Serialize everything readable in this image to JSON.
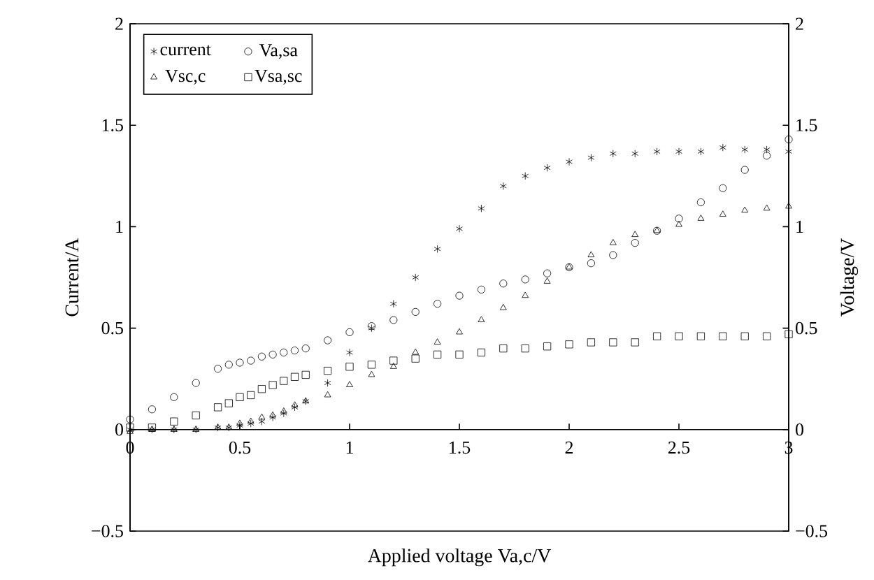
{
  "chart_data": {
    "type": "scatter",
    "xlabel": "Applied voltage Va,c/V",
    "ylabel": "Current/A",
    "y2label": "Voltage/V",
    "x": [
      0,
      0.1,
      0.2,
      0.3,
      0.4,
      0.45,
      0.5,
      0.55,
      0.6,
      0.65,
      0.7,
      0.75,
      0.8,
      0.9,
      1.0,
      1.1,
      1.2,
      1.3,
      1.4,
      1.5,
      1.6,
      1.7,
      1.8,
      1.9,
      2.0,
      2.1,
      2.2,
      2.3,
      2.4,
      2.5,
      2.6,
      2.7,
      2.8,
      2.9,
      3.0
    ],
    "series": [
      {
        "name": "current",
        "color": "#000000",
        "marker": "cross",
        "values": [
          0,
          0,
          0,
          0,
          0.01,
          0.01,
          0.02,
          0.03,
          0.04,
          0.06,
          0.08,
          0.11,
          0.14,
          0.23,
          0.38,
          0.5,
          0.62,
          0.75,
          0.89,
          0.99,
          1.09,
          1.2,
          1.25,
          1.29,
          1.32,
          1.34,
          1.36,
          1.36,
          1.37,
          1.37,
          1.37,
          1.39,
          1.38,
          1.38,
          1.37
        ]
      },
      {
        "name": "Va,sa",
        "color": "#000000",
        "marker": "circle",
        "values": [
          0.05,
          0.1,
          0.16,
          0.23,
          0.3,
          0.32,
          0.33,
          0.34,
          0.36,
          0.37,
          0.38,
          0.39,
          0.4,
          0.44,
          0.48,
          0.51,
          0.54,
          0.58,
          0.62,
          0.66,
          0.69,
          0.72,
          0.74,
          0.77,
          0.8,
          0.82,
          0.86,
          0.92,
          0.98,
          1.04,
          1.12,
          1.19,
          1.28,
          1.35,
          1.43
        ]
      },
      {
        "name": "Vsc,c",
        "color": "#000000",
        "marker": "triangle",
        "values": [
          -0.01,
          0,
          0,
          0,
          0.01,
          0.01,
          0.03,
          0.04,
          0.06,
          0.07,
          0.09,
          0.12,
          0.14,
          0.17,
          0.22,
          0.27,
          0.31,
          0.38,
          0.43,
          0.48,
          0.54,
          0.6,
          0.66,
          0.73,
          0.8,
          0.86,
          0.92,
          0.96,
          0.98,
          1.01,
          1.04,
          1.06,
          1.08,
          1.09,
          1.1
        ]
      },
      {
        "name": "Vsa,sc",
        "color": "#000000",
        "marker": "square",
        "values": [
          0.01,
          0.01,
          0.04,
          0.07,
          0.11,
          0.13,
          0.16,
          0.17,
          0.2,
          0.22,
          0.24,
          0.26,
          0.27,
          0.29,
          0.31,
          0.32,
          0.34,
          0.35,
          0.37,
          0.37,
          0.38,
          0.4,
          0.4,
          0.41,
          0.42,
          0.43,
          0.43,
          0.43,
          0.46,
          0.46,
          0.46,
          0.46,
          0.46,
          0.46,
          0.47
        ]
      }
    ],
    "xlim": [
      0,
      3
    ],
    "xticks": [
      0,
      0.5,
      1,
      1.5,
      2,
      2.5,
      3
    ],
    "ylim": [
      -0.5,
      2
    ],
    "yticks": [
      {
        "value": -0.5,
        "label": "−0.5"
      },
      0,
      0.5,
      1,
      1.5,
      2
    ],
    "y2lim": [
      -0.5,
      2
    ],
    "y2ticks": [
      {
        "value": -0.5,
        "label": "−0.5"
      },
      0,
      0.5,
      1,
      1.5,
      2
    ],
    "legend": "top left",
    "grid": false
  }
}
